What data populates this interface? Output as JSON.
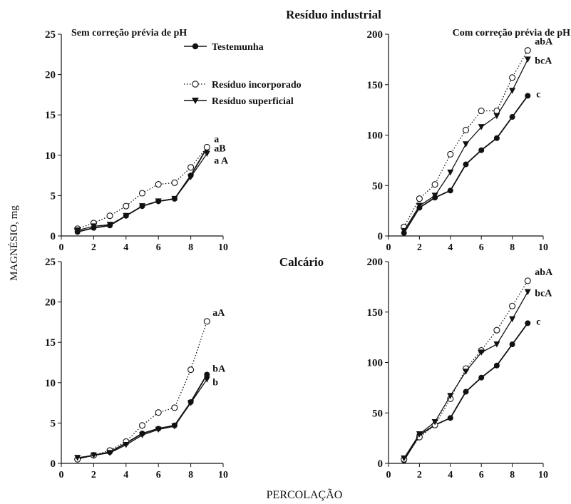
{
  "figure": {
    "y_axis_label": "MAGNÉSIO, mg",
    "x_axis_label": "PERCOLAÇÃO",
    "row_titles": [
      "Resíduo industrial",
      "Calcário"
    ],
    "column_titles": [
      "Sem correção prévia de pH",
      "Com correção prévia de pH"
    ],
    "legend": [
      {
        "label": "Testemunha",
        "marker": "filled-circle",
        "line": "solid"
      },
      {
        "label": "Resíduo incorporado",
        "marker": "open-circle",
        "line": "dotted"
      },
      {
        "label": "Resíduo superficial",
        "marker": "filled-triangle-down",
        "line": "solid"
      }
    ]
  },
  "chart_data": [
    {
      "type": "line",
      "x": [
        1,
        2,
        3,
        4,
        5,
        6,
        7,
        8,
        9
      ],
      "xlim": [
        0,
        10
      ],
      "xticks": [
        0,
        2,
        4,
        6,
        8,
        10
      ],
      "ylim": [
        0,
        25
      ],
      "yticks": [
        0,
        5,
        10,
        15,
        20,
        25
      ],
      "series": [
        {
          "name": "Testemunha",
          "values": [
            0.5,
            1.0,
            1.3,
            2.5,
            3.7,
            4.3,
            4.6,
            7.5,
            10.9
          ],
          "end_label": "a"
        },
        {
          "name": "Resíduo incorporado",
          "values": [
            0.9,
            1.6,
            2.5,
            3.7,
            5.3,
            6.4,
            6.6,
            8.5,
            11.0
          ],
          "end_label": "aB"
        },
        {
          "name": "Resíduo superficial",
          "values": [
            0.7,
            1.2,
            1.4,
            2.5,
            3.7,
            4.3,
            4.6,
            7.3,
            10.2
          ],
          "end_label": "a A"
        }
      ]
    },
    {
      "type": "line",
      "x": [
        1,
        2,
        3,
        4,
        5,
        6,
        7,
        8,
        9
      ],
      "xlim": [
        0,
        10
      ],
      "xticks": [
        0,
        2,
        4,
        6,
        8,
        10
      ],
      "ylim": [
        0,
        200
      ],
      "yticks": [
        0,
        50,
        100,
        150,
        200
      ],
      "series": [
        {
          "name": "Testemunha",
          "values": [
            3,
            28,
            38,
            45,
            71,
            85,
            97,
            118,
            139
          ],
          "end_label": "c"
        },
        {
          "name": "Resíduo incorporado",
          "values": [
            9,
            37,
            51,
            81,
            105,
            124,
            124,
            157,
            184
          ],
          "end_label": "abA"
        },
        {
          "name": "Resíduo superficial",
          "values": [
            5,
            30,
            40,
            63,
            91,
            108,
            119,
            144,
            175
          ],
          "end_label": "bcA"
        }
      ]
    },
    {
      "type": "line",
      "x": [
        1,
        2,
        3,
        4,
        5,
        6,
        7,
        8,
        9
      ],
      "xlim": [
        0,
        10
      ],
      "xticks": [
        0,
        2,
        4,
        6,
        8,
        10
      ],
      "ylim": [
        0,
        25
      ],
      "yticks": [
        0,
        5,
        10,
        15,
        20,
        25
      ],
      "series": [
        {
          "name": "Testemunha",
          "values": [
            0.6,
            1.0,
            1.4,
            2.5,
            3.7,
            4.3,
            4.7,
            7.6,
            11.0
          ],
          "end_label": "bA"
        },
        {
          "name": "Resíduo incorporado",
          "values": [
            0.5,
            1.0,
            1.6,
            2.7,
            4.7,
            6.3,
            6.9,
            11.6,
            17.6
          ],
          "end_label": "aA"
        },
        {
          "name": "Resíduo superficial",
          "values": [
            0.7,
            1.0,
            1.3,
            2.3,
            3.5,
            4.2,
            4.6,
            7.5,
            10.4
          ],
          "end_label": "b"
        }
      ]
    },
    {
      "type": "line",
      "x": [
        1,
        2,
        3,
        4,
        5,
        6,
        7,
        8,
        9
      ],
      "xlim": [
        0,
        10
      ],
      "xticks": [
        0,
        2,
        4,
        6,
        8,
        10
      ],
      "ylim": [
        0,
        200
      ],
      "yticks": [
        0,
        50,
        100,
        150,
        200
      ],
      "series": [
        {
          "name": "Testemunha",
          "values": [
            3,
            28,
            38,
            45,
            71,
            85,
            97,
            118,
            139
          ],
          "end_label": "c"
        },
        {
          "name": "Resíduo incorporado",
          "values": [
            4,
            26,
            38,
            64,
            94,
            112,
            132,
            156,
            181
          ],
          "end_label": "abA"
        },
        {
          "name": "Resíduo superficial",
          "values": [
            5,
            29,
            41,
            67,
            91,
            110,
            118,
            143,
            170
          ],
          "end_label": "bcA"
        }
      ]
    }
  ]
}
